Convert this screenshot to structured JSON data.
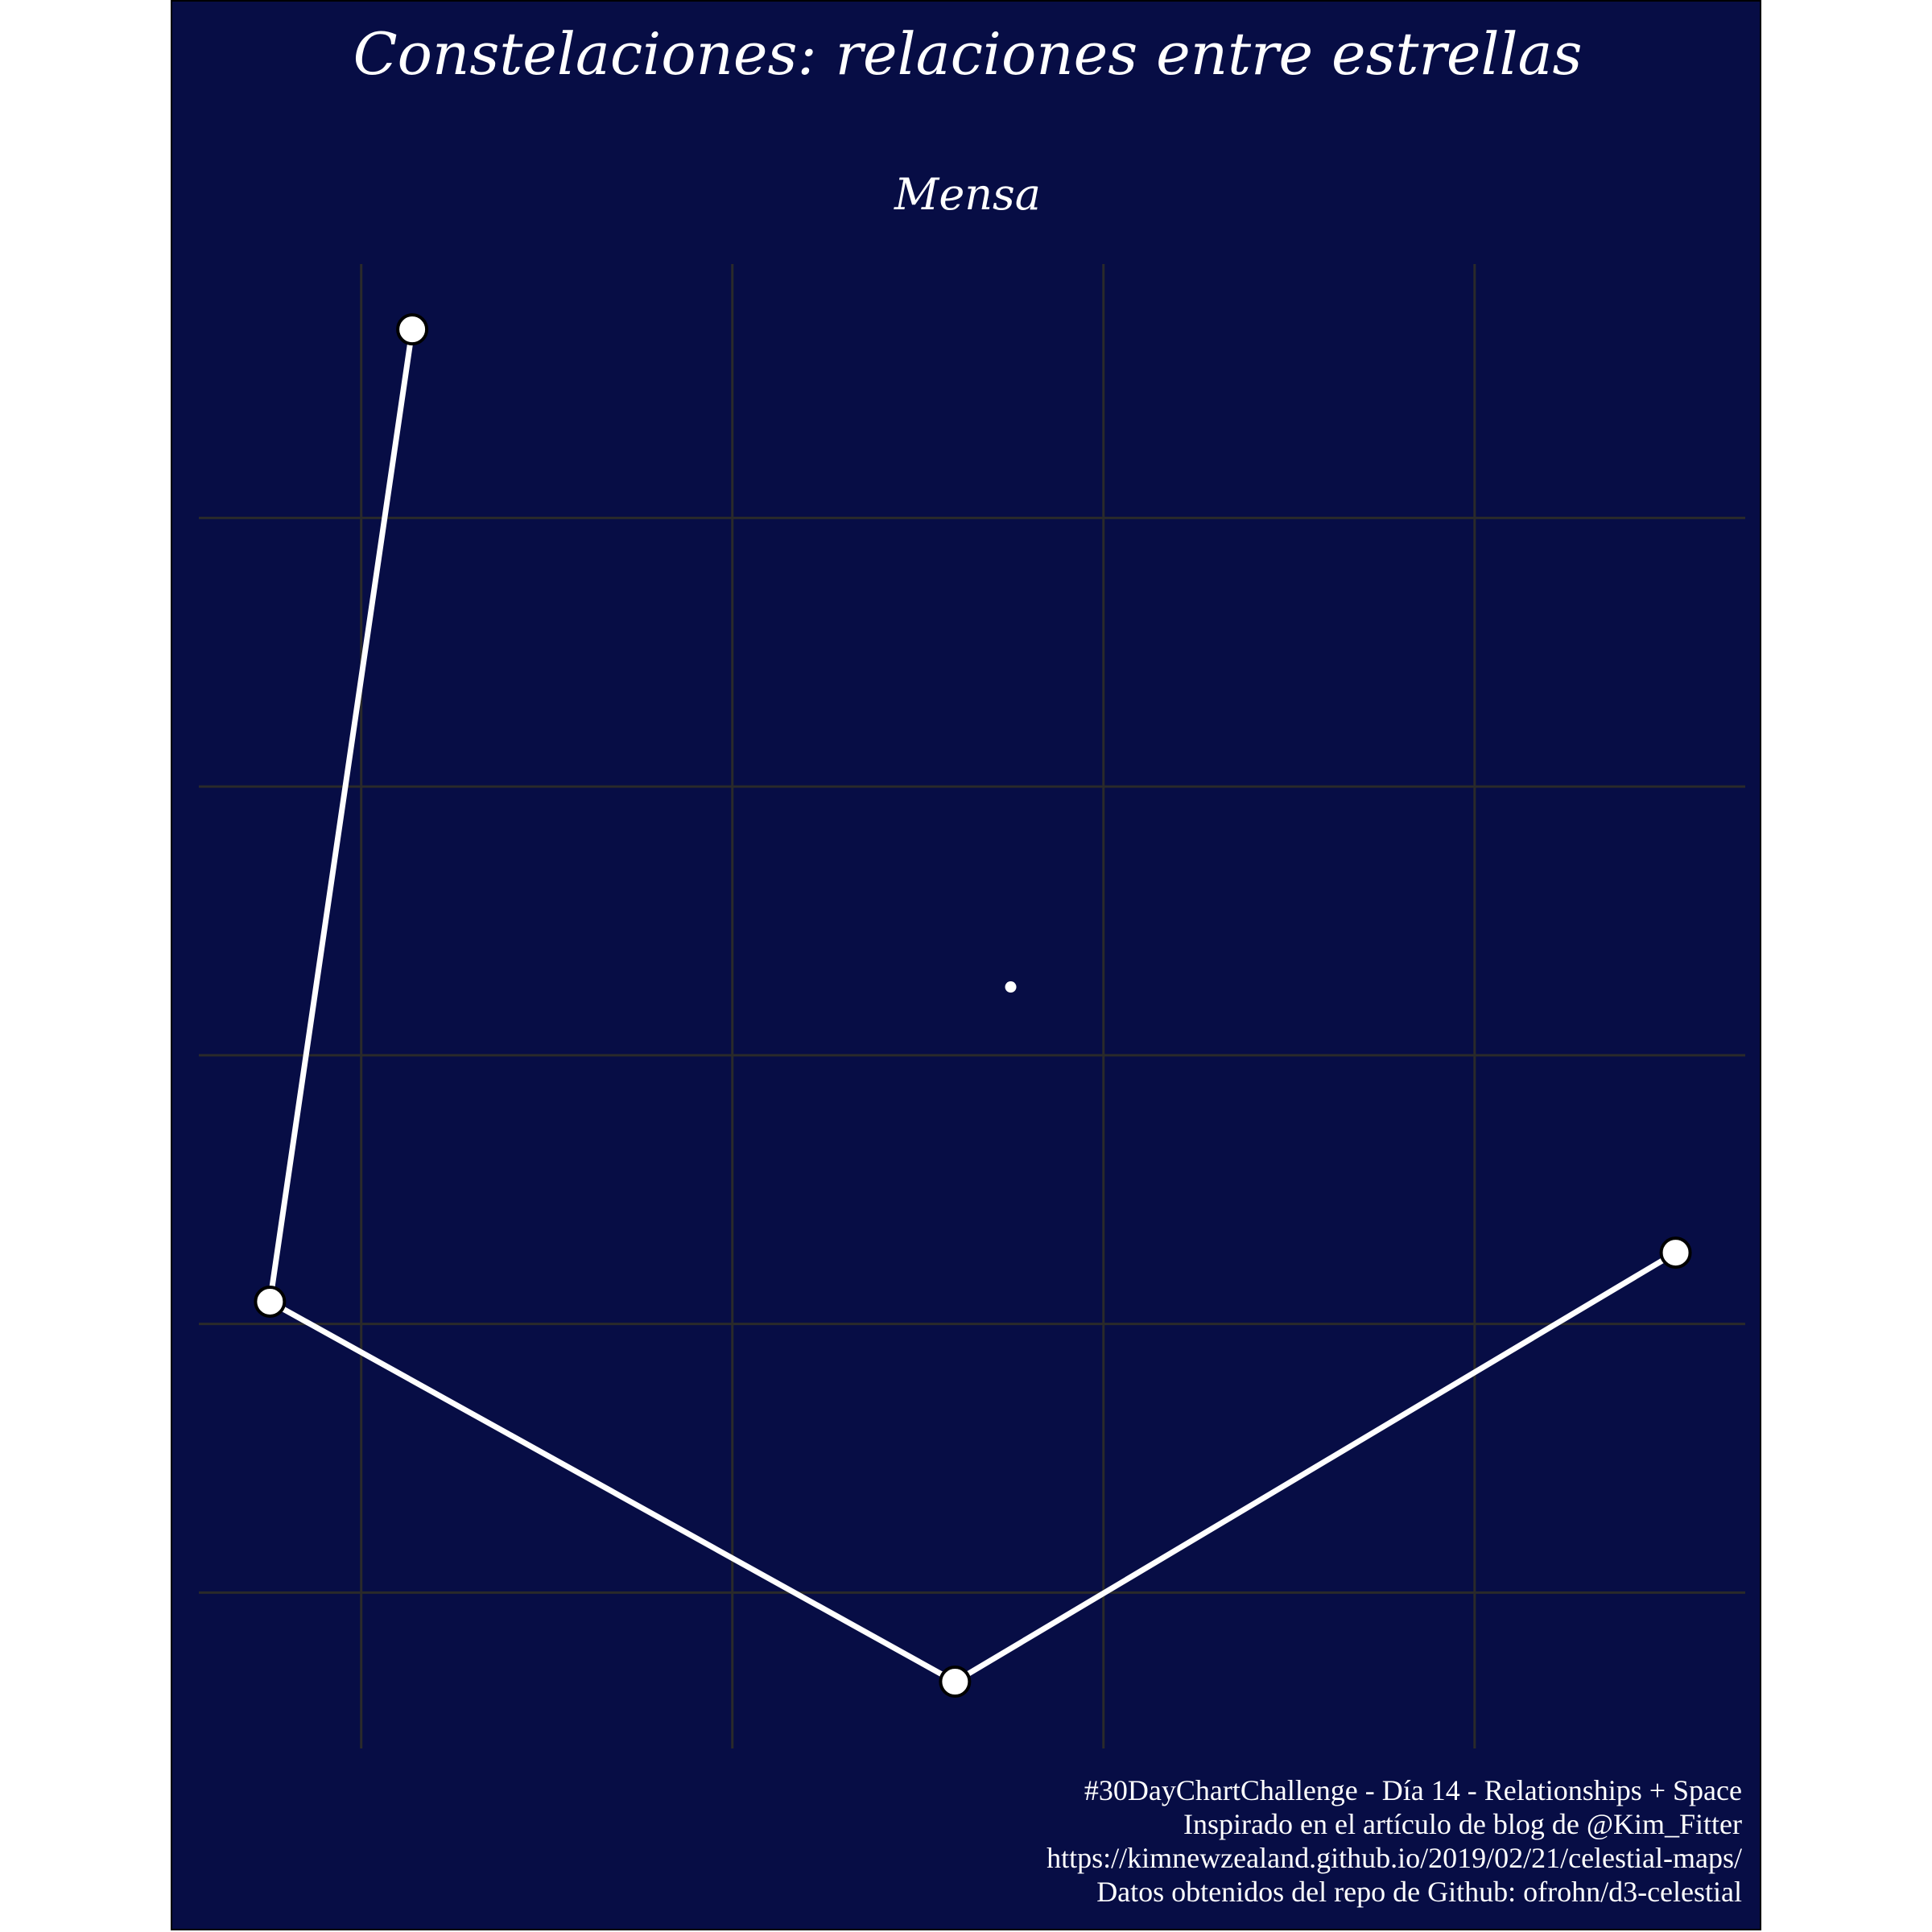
{
  "chart_data": {
    "type": "scatter",
    "title": "Constelaciones: relaciones entre estrellas",
    "subtitle": "Mensa",
    "xlabel": "",
    "ylabel": "",
    "grid": true,
    "xlim": [
      0,
      100
    ],
    "ylim": [
      0,
      100
    ],
    "x_gridlines": [
      10.5,
      34.5,
      58.5,
      82.5
    ],
    "y_gridlines": [
      10.5,
      28.6,
      46.7,
      64.8,
      82.9
    ],
    "stars": [
      {
        "x": 13.8,
        "y": 95.6,
        "size": "large"
      },
      {
        "x": 4.6,
        "y": 30.1,
        "size": "large"
      },
      {
        "x": 48.9,
        "y": 4.5,
        "size": "large"
      },
      {
        "x": 95.5,
        "y": 33.4,
        "size": "large"
      },
      {
        "x": 52.5,
        "y": 51.3,
        "size": "small"
      }
    ],
    "lines": [
      [
        0,
        1
      ],
      [
        1,
        2
      ],
      [
        2,
        3
      ]
    ],
    "colors": {
      "background": "#070d45",
      "grid": "#2a2a2a",
      "line": "#ffffff",
      "star_fill": "#ffffff",
      "star_stroke": "#000000"
    }
  },
  "caption": {
    "line1": "#30DayChartChallenge - Día 14 - Relationships + Space",
    "line2": "Inspirado en el artículo de blog de @Kim_Fitter",
    "line3": "https://kimnewzealand.github.io/2019/02/21/celestial-maps/",
    "line4": "Datos obtenidos del repo de Github: ofrohn/d3-celestial"
  }
}
